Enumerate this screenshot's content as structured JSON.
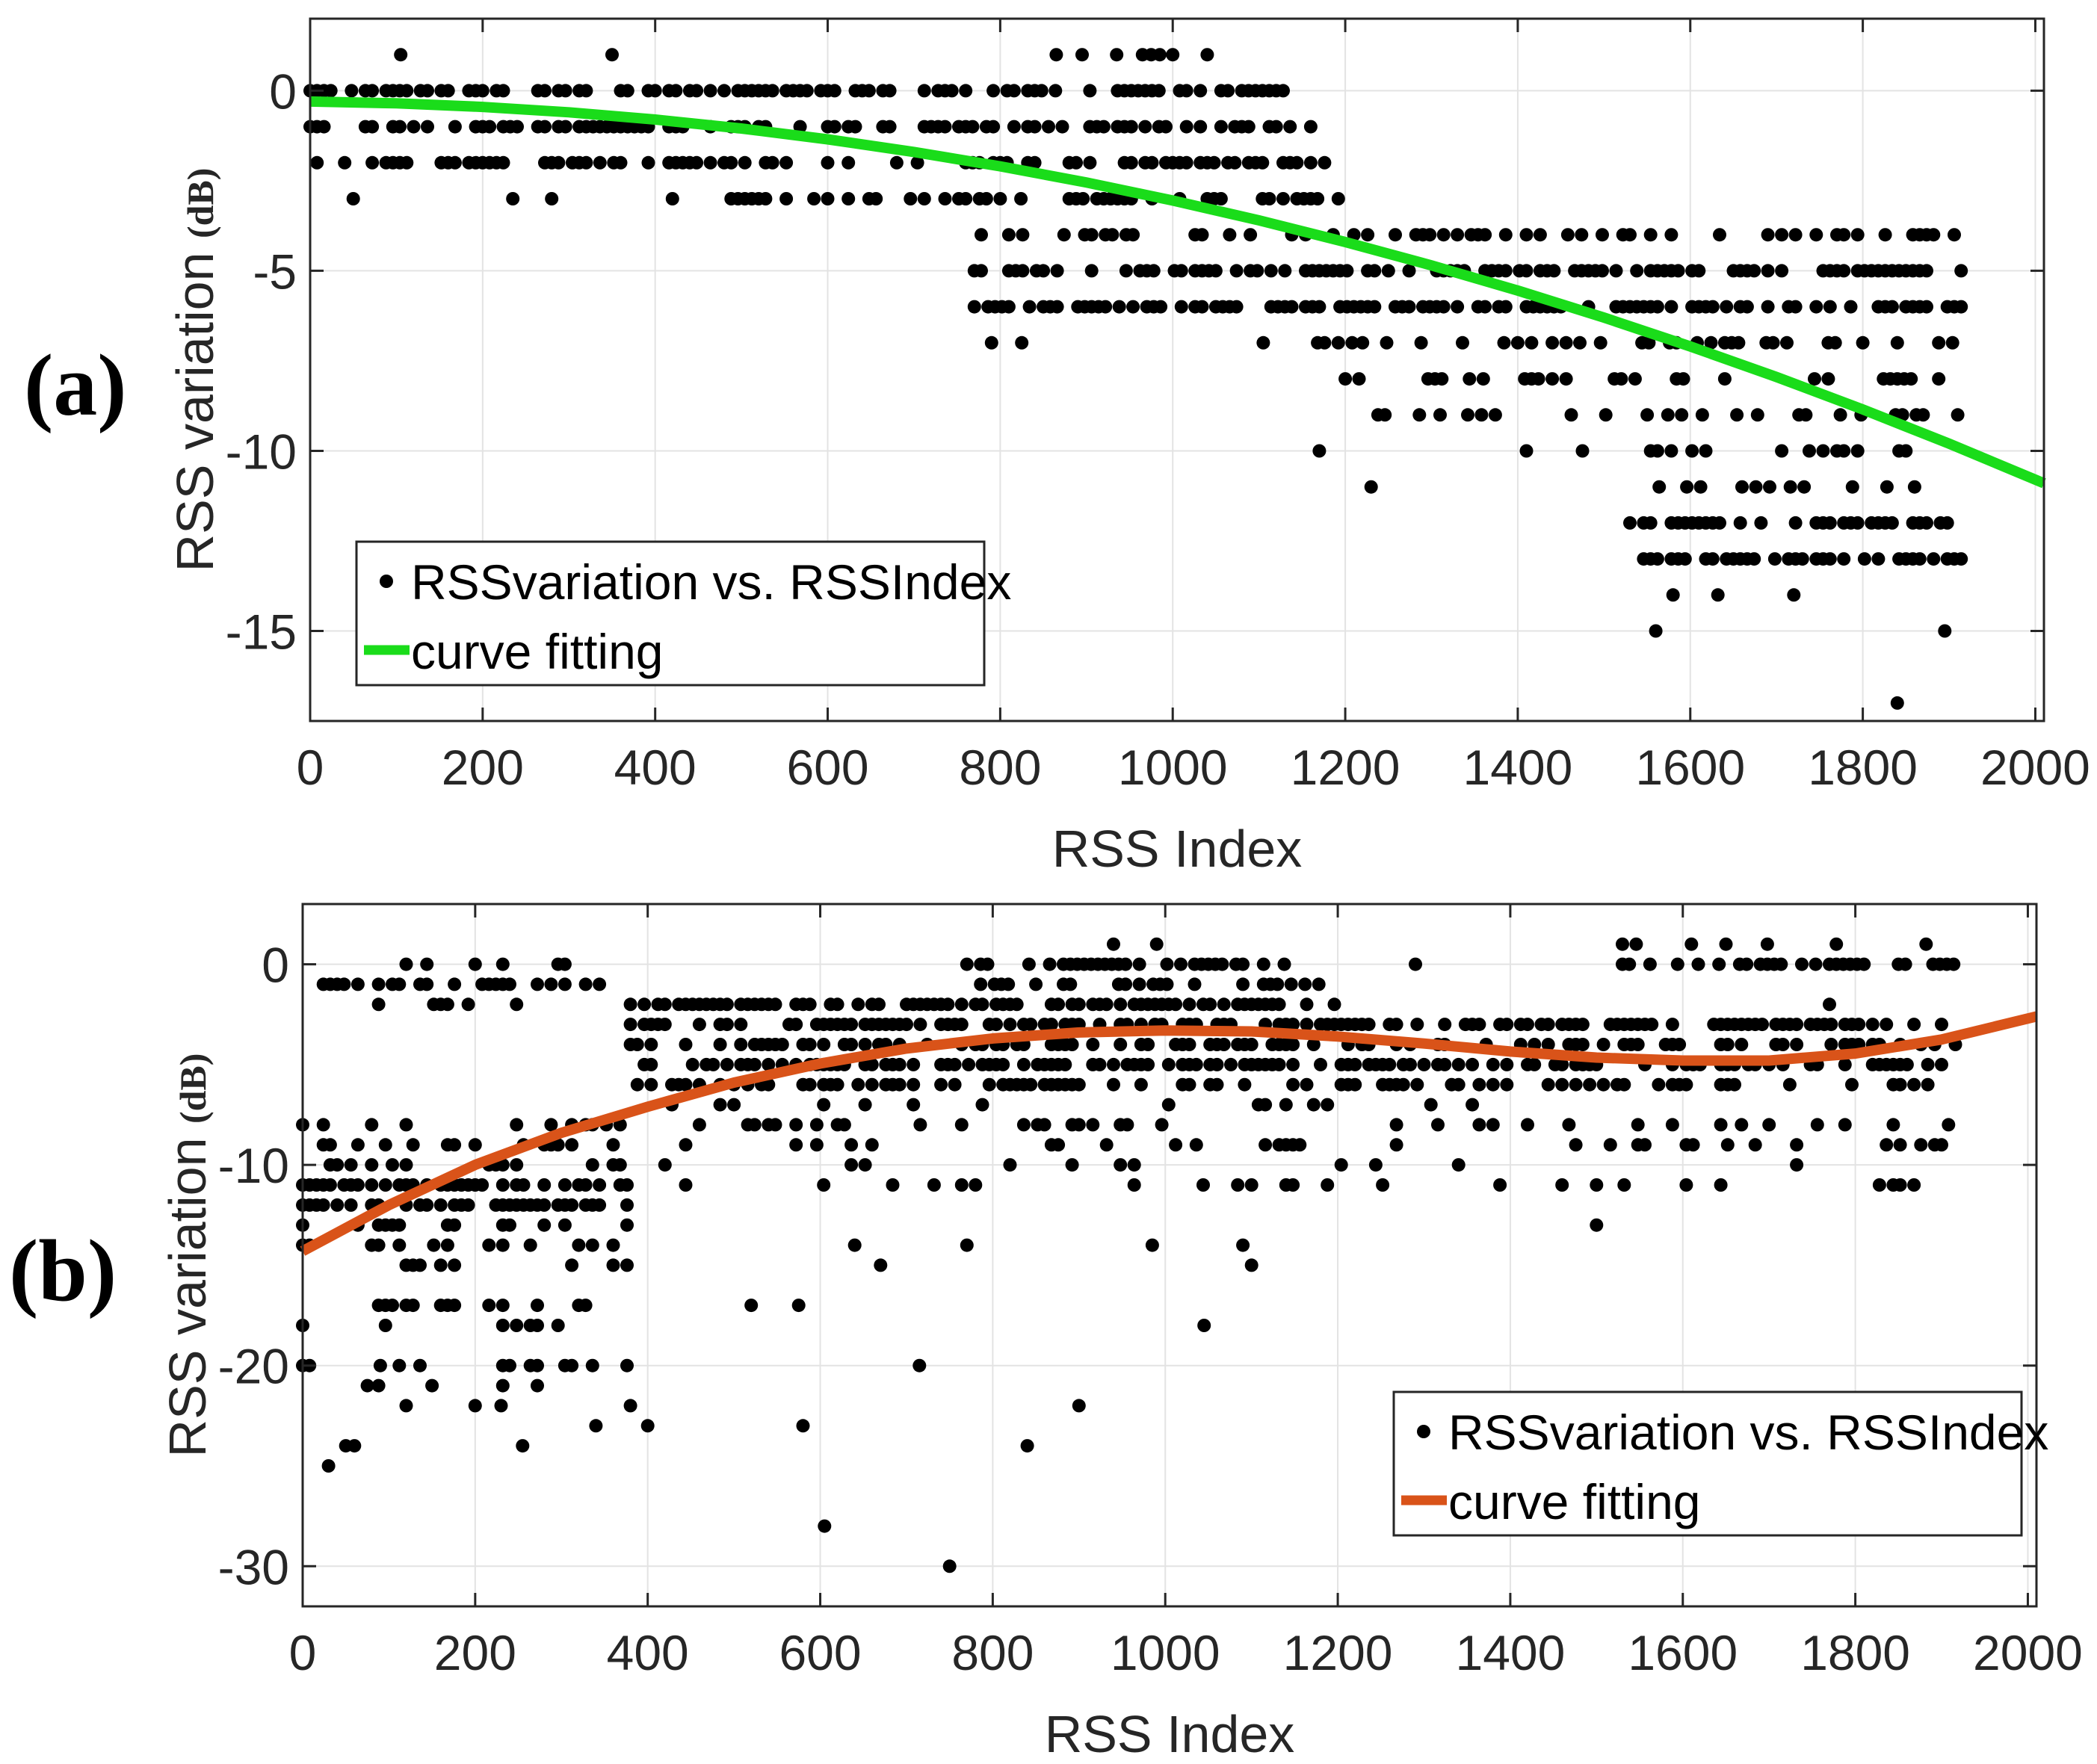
{
  "figure": {
    "panel_labels": [
      "(a)",
      "(b)"
    ]
  },
  "chart_data": [
    {
      "type": "scatter",
      "panel": "(a)",
      "title": "",
      "xlabel": "RSS Index",
      "ylabel": "RSS variation",
      "ylabel_unit": "(dB)",
      "xlim": [
        0,
        2010
      ],
      "ylim": [
        -17.5,
        2
      ],
      "xticks": [
        0,
        200,
        400,
        600,
        800,
        1000,
        1200,
        1400,
        1600,
        1800,
        2000
      ],
      "yticks": [
        0,
        -5,
        -10,
        -15
      ],
      "grid": true,
      "legend": {
        "location": "bottom-left",
        "entries": [
          "RSSvariation vs. RSSIndex",
          "curve fitting"
        ]
      },
      "series": [
        {
          "name": "RSSvariation vs. RSSIndex",
          "kind": "scatter",
          "color": "#000000",
          "bands": [
            {
              "x0": 0,
              "x1": 1150,
              "y": 0,
              "density": 0.55
            },
            {
              "x0": 0,
              "x1": 1160,
              "y": -1,
              "density": 0.6
            },
            {
              "x0": 0,
              "x1": 1180,
              "y": -2,
              "density": 0.5
            },
            {
              "x0": 480,
              "x1": 1200,
              "y": -3,
              "density": 0.5
            },
            {
              "x0": 770,
              "x1": 1920,
              "y": -4,
              "density": 0.45
            },
            {
              "x0": 770,
              "x1": 1920,
              "y": -5,
              "density": 0.55
            },
            {
              "x0": 770,
              "x1": 1920,
              "y": -6,
              "density": 0.6
            },
            {
              "x0": 1160,
              "x1": 1920,
              "y": -7,
              "density": 0.3
            },
            {
              "x0": 1160,
              "x1": 1920,
              "y": -8,
              "density": 0.22
            },
            {
              "x0": 1230,
              "x1": 1920,
              "y": -9,
              "density": 0.28
            },
            {
              "x0": 1530,
              "x1": 1920,
              "y": -10,
              "density": 0.3
            },
            {
              "x0": 1540,
              "x1": 1920,
              "y": -11,
              "density": 0.35
            },
            {
              "x0": 1530,
              "x1": 1920,
              "y": -12,
              "density": 0.55
            },
            {
              "x0": 1530,
              "x1": 1920,
              "y": -13,
              "density": 0.6
            },
            {
              "x0": 1560,
              "x1": 1720,
              "y": -14,
              "density": 0.08
            }
          ],
          "extra_points": [
            [
              105,
              1
            ],
            [
              350,
              1
            ],
            [
              865,
              1
            ],
            [
              895,
              1
            ],
            [
              935,
              1
            ],
            [
              965,
              1
            ],
            [
              975,
              1
            ],
            [
              985,
              1
            ],
            [
              1000,
              1
            ],
            [
              1040,
              1
            ],
            [
              50,
              -3
            ],
            [
              235,
              -3
            ],
            [
              280,
              -3
            ],
            [
              420,
              -3
            ],
            [
              790,
              -7
            ],
            [
              825,
              -7
            ],
            [
              1105,
              -7
            ],
            [
              1220,
              -7
            ],
            [
              1170,
              -10
            ],
            [
              1410,
              -10
            ],
            [
              1475,
              -10
            ],
            [
              1230,
              -11
            ],
            [
              1560,
              -15
            ],
            [
              1895,
              -15
            ],
            [
              1840,
              -17
            ],
            [
              1720,
              -14
            ],
            [
              1580,
              -14
            ]
          ]
        },
        {
          "name": "curve fitting",
          "kind": "line",
          "color": "#1adc1a",
          "x": [
            0,
            100,
            200,
            300,
            400,
            500,
            600,
            700,
            800,
            900,
            1000,
            1100,
            1200,
            1300,
            1400,
            1500,
            1600,
            1700,
            1800,
            1900,
            2010
          ],
          "y": [
            -0.3,
            -0.35,
            -0.45,
            -0.6,
            -0.8,
            -1.05,
            -1.35,
            -1.7,
            -2.1,
            -2.55,
            -3.05,
            -3.6,
            -4.2,
            -4.85,
            -5.55,
            -6.3,
            -7.1,
            -7.95,
            -8.85,
            -9.8,
            -10.9
          ]
        }
      ]
    },
    {
      "type": "scatter",
      "panel": "(b)",
      "title": "",
      "xlabel": "RSS Index",
      "ylabel": "RSS variation",
      "ylabel_unit": "(dB)",
      "xlim": [
        0,
        2010
      ],
      "ylim": [
        -32,
        3
      ],
      "xticks": [
        0,
        200,
        400,
        600,
        800,
        1000,
        1200,
        1400,
        1600,
        1800,
        2000
      ],
      "yticks": [
        0,
        -10,
        -20,
        -30
      ],
      "grid": true,
      "legend": {
        "location": "bottom-right",
        "entries": [
          "RSSvariation vs. RSSIndex",
          "curve fitting"
        ]
      },
      "series": [
        {
          "name": "RSSvariation vs. RSSIndex",
          "kind": "scatter",
          "color": "#000000",
          "bands": [
            {
              "x0": 0,
              "x1": 380,
              "y": 0,
              "density": 0.12
            },
            {
              "x0": 0,
              "x1": 380,
              "y": -1,
              "density": 0.45
            },
            {
              "x0": 0,
              "x1": 380,
              "y": -2,
              "density": 0.15
            },
            {
              "x0": 0,
              "x1": 380,
              "y": -8,
              "density": 0.2
            },
            {
              "x0": 0,
              "x1": 380,
              "y": -9,
              "density": 0.3
            },
            {
              "x0": 0,
              "x1": 380,
              "y": -10,
              "density": 0.35
            },
            {
              "x0": 0,
              "x1": 380,
              "y": -11,
              "density": 0.45
            },
            {
              "x0": 0,
              "x1": 380,
              "y": -12,
              "density": 0.6
            },
            {
              "x0": 0,
              "x1": 380,
              "y": -13,
              "density": 0.3
            },
            {
              "x0": 0,
              "x1": 380,
              "y": -14,
              "density": 0.25
            },
            {
              "x0": 0,
              "x1": 380,
              "y": -15,
              "density": 0.15
            },
            {
              "x0": 0,
              "x1": 380,
              "y": -17,
              "density": 0.18
            },
            {
              "x0": 0,
              "x1": 380,
              "y": -18,
              "density": 0.15
            },
            {
              "x0": 0,
              "x1": 380,
              "y": -20,
              "density": 0.18
            },
            {
              "x0": 0,
              "x1": 380,
              "y": -21,
              "density": 0.08
            },
            {
              "x0": 770,
              "x1": 1150,
              "y": 0,
              "density": 0.5
            },
            {
              "x0": 770,
              "x1": 1200,
              "y": -1,
              "density": 0.45
            },
            {
              "x0": 380,
              "x1": 1210,
              "y": -2,
              "density": 0.55
            },
            {
              "x0": 380,
              "x1": 1920,
              "y": -3,
              "density": 0.55
            },
            {
              "x0": 380,
              "x1": 1920,
              "y": -4,
              "density": 0.5
            },
            {
              "x0": 380,
              "x1": 1920,
              "y": -5,
              "density": 0.55
            },
            {
              "x0": 380,
              "x1": 1920,
              "y": -6,
              "density": 0.4
            },
            {
              "x0": 380,
              "x1": 1500,
              "y": -7,
              "density": 0.12
            },
            {
              "x0": 380,
              "x1": 1920,
              "y": -8,
              "density": 0.2
            },
            {
              "x0": 380,
              "x1": 1920,
              "y": -9,
              "density": 0.15
            },
            {
              "x0": 380,
              "x1": 1920,
              "y": -10,
              "density": 0.1
            },
            {
              "x0": 380,
              "x1": 1920,
              "y": -11,
              "density": 0.1
            },
            {
              "x0": 1530,
              "x1": 1920,
              "y": 1,
              "density": 0.18
            },
            {
              "x0": 1530,
              "x1": 1920,
              "y": 0,
              "density": 0.55
            }
          ],
          "extra_points": [
            [
              30,
              -25
            ],
            [
              50,
              -24
            ],
            [
              60,
              -24
            ],
            [
              75,
              -21
            ],
            [
              90,
              -20
            ],
            [
              120,
              -22
            ],
            [
              150,
              -21
            ],
            [
              200,
              -22
            ],
            [
              230,
              -22
            ],
            [
              255,
              -24
            ],
            [
              340,
              -23
            ],
            [
              380,
              -22
            ],
            [
              400,
              -23
            ],
            [
              520,
              -17
            ],
            [
              575,
              -17
            ],
            [
              580,
              -23
            ],
            [
              605,
              -28
            ],
            [
              640,
              -14
            ],
            [
              670,
              -15
            ],
            [
              715,
              -20
            ],
            [
              750,
              -30
            ],
            [
              770,
              -14
            ],
            [
              840,
              -24
            ],
            [
              900,
              -22
            ],
            [
              985,
              -14
            ],
            [
              1045,
              -18
            ],
            [
              1090,
              -14
            ],
            [
              1100,
              -15
            ],
            [
              1290,
              0
            ],
            [
              1500,
              -13
            ],
            [
              1770,
              -2
            ],
            [
              940,
              1
            ],
            [
              990,
              1
            ]
          ]
        },
        {
          "name": "curve fitting",
          "kind": "line",
          "color": "#d95319",
          "x": [
            0,
            100,
            200,
            300,
            400,
            500,
            600,
            700,
            800,
            900,
            1000,
            1100,
            1200,
            1300,
            1400,
            1500,
            1600,
            1700,
            1800,
            1900,
            2010
          ],
          "y": [
            -14.3,
            -12.0,
            -10.0,
            -8.4,
            -7.1,
            -5.9,
            -4.95,
            -4.2,
            -3.7,
            -3.4,
            -3.3,
            -3.35,
            -3.6,
            -3.95,
            -4.35,
            -4.65,
            -4.8,
            -4.8,
            -4.45,
            -3.75,
            -2.6
          ]
        }
      ]
    }
  ]
}
